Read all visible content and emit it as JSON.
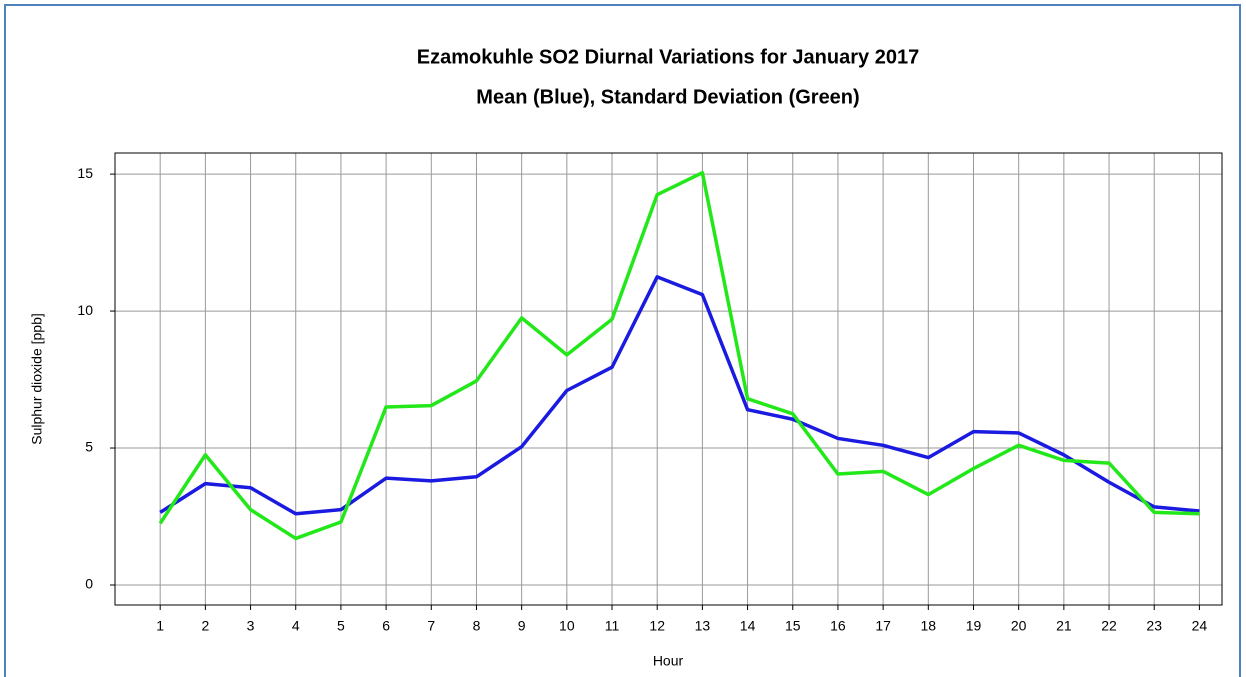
{
  "chart_data": {
    "type": "line",
    "title": "Ezamokuhle SO2 Diurnal Variations for January 2017",
    "subtitle": "Mean (Blue), Standard Deviation (Green)",
    "x_label": "Hour",
    "y_label": "Sulphur dioxide  [ppb]",
    "x": [
      1,
      2,
      3,
      4,
      5,
      6,
      7,
      8,
      9,
      10,
      11,
      12,
      13,
      14,
      15,
      16,
      17,
      18,
      19,
      20,
      21,
      22,
      23,
      24
    ],
    "series": [
      {
        "color": "#1a1ae0",
        "values": [
          2.65,
          3.7,
          3.55,
          2.6,
          2.75,
          3.9,
          3.8,
          3.95,
          5.05,
          7.1,
          7.95,
          11.25,
          10.6,
          6.4,
          6.05,
          5.35,
          5.1,
          4.65,
          5.6,
          5.55,
          4.75,
          3.75,
          2.85,
          2.7
        ]
      },
      {
        "color": "#22e81a",
        "values": [
          2.25,
          4.75,
          2.75,
          1.7,
          2.3,
          6.5,
          6.55,
          7.45,
          9.75,
          8.4,
          9.7,
          14.25,
          15.05,
          6.8,
          6.25,
          4.05,
          4.15,
          3.3,
          4.25,
          5.1,
          4.55,
          4.45,
          2.65,
          2.6
        ]
      }
    ],
    "xlim": [
      0,
      24.5
    ],
    "xticks": [
      1,
      2,
      3,
      4,
      5,
      6,
      7,
      8,
      9,
      10,
      11,
      12,
      13,
      14,
      15,
      16,
      17,
      18,
      19,
      20,
      21,
      22,
      23,
      24
    ],
    "ylim": [
      -0.73,
      15.77
    ],
    "yticks": [
      0,
      5,
      10,
      15
    ],
    "grid": true
  }
}
